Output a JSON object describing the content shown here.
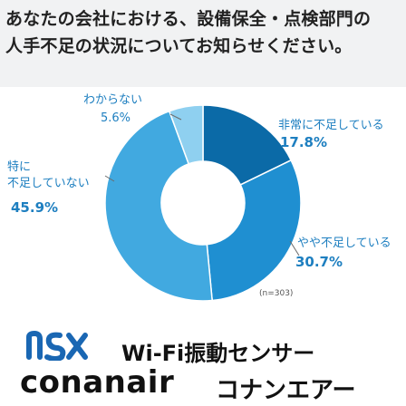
{
  "header": {
    "title_line1": "あなたの会社における、設備保全・点検部門の",
    "title_line2": "人手不足の状況についてお知らせください。"
  },
  "chart_data": {
    "type": "pie",
    "style": "donut",
    "slices": [
      {
        "label": "非常に不足している",
        "value": 17.8,
        "value_text": "17.8%",
        "color": "#0b6aa7"
      },
      {
        "label": "やや不足している",
        "value": 30.7,
        "value_text": "30.7%",
        "color": "#1f8fd1"
      },
      {
        "label_line1": "特に",
        "label_line2": "不足していない",
        "value": 45.9,
        "value_text": "45.9%",
        "color": "#41a9e0"
      },
      {
        "label": "わからない",
        "value": 5.6,
        "value_text": "5.6%",
        "color": "#8fd0f0"
      }
    ],
    "label_color": "#1e7fc0",
    "note": "(n=303)"
  },
  "footer": {
    "logo_icon": "nsx-logo-icon",
    "product": "Wi-Fi振動センサー",
    "brand": "conanair",
    "brand_kana": "コナンエアー"
  }
}
